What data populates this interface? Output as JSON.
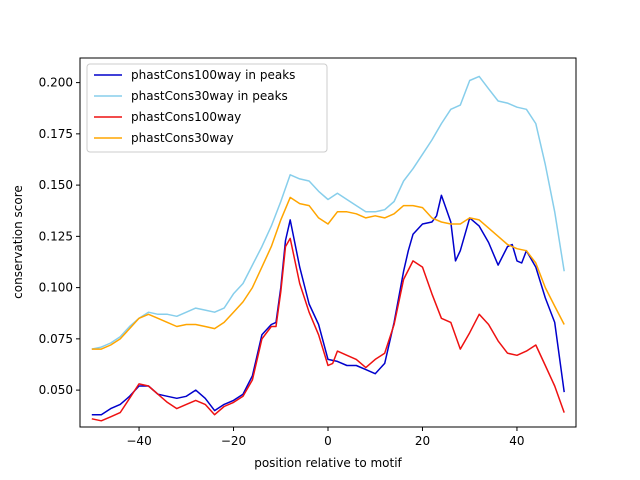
{
  "chart_data": {
    "type": "line",
    "xlabel": "position relative to motif",
    "ylabel": "conservation score",
    "xlim": [
      -52.5,
      52.5
    ],
    "ylim": [
      0.032,
      0.212
    ],
    "xticks": [
      -40,
      -20,
      0,
      20,
      40
    ],
    "yticks": [
      0.05,
      0.075,
      0.1,
      0.125,
      0.15,
      0.175,
      0.2
    ],
    "ytick_labels": [
      "0.050",
      "0.075",
      "0.100",
      "0.125",
      "0.150",
      "0.175",
      "0.200"
    ],
    "legend_position": "upper-left",
    "series": [
      {
        "name": "phastCons100way in peaks",
        "color": "#0000cc",
        "points": [
          [
            -50,
            0.038
          ],
          [
            -48,
            0.038
          ],
          [
            -46,
            0.041
          ],
          [
            -44,
            0.043
          ],
          [
            -42,
            0.047
          ],
          [
            -40,
            0.052
          ],
          [
            -38,
            0.052
          ],
          [
            -36,
            0.048
          ],
          [
            -34,
            0.047
          ],
          [
            -32,
            0.046
          ],
          [
            -30,
            0.047
          ],
          [
            -28,
            0.05
          ],
          [
            -26,
            0.046
          ],
          [
            -24,
            0.04
          ],
          [
            -22,
            0.043
          ],
          [
            -20,
            0.045
          ],
          [
            -18,
            0.048
          ],
          [
            -16,
            0.057
          ],
          [
            -14,
            0.077
          ],
          [
            -12,
            0.082
          ],
          [
            -11,
            0.083
          ],
          [
            -10,
            0.1
          ],
          [
            -9,
            0.123
          ],
          [
            -8,
            0.133
          ],
          [
            -6,
            0.11
          ],
          [
            -4,
            0.092
          ],
          [
            -2,
            0.082
          ],
          [
            0,
            0.065
          ],
          [
            2,
            0.064
          ],
          [
            4,
            0.062
          ],
          [
            6,
            0.062
          ],
          [
            8,
            0.06
          ],
          [
            10,
            0.058
          ],
          [
            12,
            0.063
          ],
          [
            14,
            0.083
          ],
          [
            16,
            0.108
          ],
          [
            17,
            0.118
          ],
          [
            18,
            0.126
          ],
          [
            20,
            0.131
          ],
          [
            22,
            0.132
          ],
          [
            23,
            0.135
          ],
          [
            24,
            0.145
          ],
          [
            26,
            0.132
          ],
          [
            27,
            0.113
          ],
          [
            28,
            0.118
          ],
          [
            30,
            0.134
          ],
          [
            32,
            0.13
          ],
          [
            34,
            0.122
          ],
          [
            36,
            0.111
          ],
          [
            38,
            0.12
          ],
          [
            39,
            0.121
          ],
          [
            40,
            0.113
          ],
          [
            41,
            0.112
          ],
          [
            42,
            0.118
          ],
          [
            44,
            0.11
          ],
          [
            46,
            0.095
          ],
          [
            48,
            0.083
          ],
          [
            50,
            0.049
          ]
        ]
      },
      {
        "name": "phastCons30way in peaks",
        "color": "#87ceeb",
        "points": [
          [
            -50,
            0.07
          ],
          [
            -48,
            0.071
          ],
          [
            -46,
            0.073
          ],
          [
            -44,
            0.076
          ],
          [
            -42,
            0.081
          ],
          [
            -40,
            0.085
          ],
          [
            -38,
            0.088
          ],
          [
            -36,
            0.087
          ],
          [
            -34,
            0.087
          ],
          [
            -32,
            0.086
          ],
          [
            -30,
            0.088
          ],
          [
            -28,
            0.09
          ],
          [
            -26,
            0.089
          ],
          [
            -24,
            0.088
          ],
          [
            -22,
            0.09
          ],
          [
            -20,
            0.097
          ],
          [
            -18,
            0.102
          ],
          [
            -16,
            0.111
          ],
          [
            -14,
            0.12
          ],
          [
            -12,
            0.13
          ],
          [
            -10,
            0.142
          ],
          [
            -8,
            0.155
          ],
          [
            -6,
            0.153
          ],
          [
            -4,
            0.152
          ],
          [
            -2,
            0.147
          ],
          [
            0,
            0.143
          ],
          [
            2,
            0.146
          ],
          [
            4,
            0.143
          ],
          [
            6,
            0.14
          ],
          [
            8,
            0.137
          ],
          [
            10,
            0.137
          ],
          [
            12,
            0.138
          ],
          [
            14,
            0.142
          ],
          [
            16,
            0.152
          ],
          [
            18,
            0.158
          ],
          [
            20,
            0.165
          ],
          [
            22,
            0.172
          ],
          [
            24,
            0.18
          ],
          [
            26,
            0.187
          ],
          [
            28,
            0.189
          ],
          [
            30,
            0.201
          ],
          [
            32,
            0.203
          ],
          [
            34,
            0.197
          ],
          [
            36,
            0.191
          ],
          [
            38,
            0.19
          ],
          [
            40,
            0.188
          ],
          [
            42,
            0.187
          ],
          [
            44,
            0.18
          ],
          [
            46,
            0.16
          ],
          [
            48,
            0.137
          ],
          [
            50,
            0.108
          ]
        ]
      },
      {
        "name": "phastCons100way",
        "color": "#ee1111",
        "points": [
          [
            -50,
            0.036
          ],
          [
            -48,
            0.035
          ],
          [
            -46,
            0.037
          ],
          [
            -44,
            0.039
          ],
          [
            -42,
            0.046
          ],
          [
            -40,
            0.053
          ],
          [
            -38,
            0.052
          ],
          [
            -36,
            0.048
          ],
          [
            -34,
            0.044
          ],
          [
            -32,
            0.041
          ],
          [
            -30,
            0.043
          ],
          [
            -28,
            0.045
          ],
          [
            -26,
            0.043
          ],
          [
            -24,
            0.038
          ],
          [
            -22,
            0.042
          ],
          [
            -20,
            0.044
          ],
          [
            -18,
            0.047
          ],
          [
            -16,
            0.055
          ],
          [
            -14,
            0.075
          ],
          [
            -12,
            0.081
          ],
          [
            -11,
            0.081
          ],
          [
            -10,
            0.098
          ],
          [
            -9,
            0.12
          ],
          [
            -8,
            0.124
          ],
          [
            -6,
            0.102
          ],
          [
            -4,
            0.088
          ],
          [
            -2,
            0.077
          ],
          [
            0,
            0.062
          ],
          [
            1,
            0.063
          ],
          [
            2,
            0.069
          ],
          [
            4,
            0.067
          ],
          [
            6,
            0.065
          ],
          [
            8,
            0.061
          ],
          [
            10,
            0.065
          ],
          [
            12,
            0.068
          ],
          [
            14,
            0.082
          ],
          [
            16,
            0.104
          ],
          [
            18,
            0.113
          ],
          [
            20,
            0.11
          ],
          [
            22,
            0.097
          ],
          [
            24,
            0.085
          ],
          [
            26,
            0.083
          ],
          [
            28,
            0.07
          ],
          [
            30,
            0.078
          ],
          [
            32,
            0.087
          ],
          [
            34,
            0.082
          ],
          [
            36,
            0.074
          ],
          [
            38,
            0.068
          ],
          [
            40,
            0.067
          ],
          [
            42,
            0.069
          ],
          [
            44,
            0.072
          ],
          [
            46,
            0.062
          ],
          [
            48,
            0.052
          ],
          [
            50,
            0.039
          ]
        ]
      },
      {
        "name": "phastCons30way",
        "color": "#ffa500",
        "points": [
          [
            -50,
            0.07
          ],
          [
            -48,
            0.07
          ],
          [
            -46,
            0.072
          ],
          [
            -44,
            0.075
          ],
          [
            -42,
            0.08
          ],
          [
            -40,
            0.085
          ],
          [
            -38,
            0.087
          ],
          [
            -36,
            0.085
          ],
          [
            -34,
            0.083
          ],
          [
            -32,
            0.081
          ],
          [
            -30,
            0.082
          ],
          [
            -28,
            0.082
          ],
          [
            -26,
            0.081
          ],
          [
            -24,
            0.08
          ],
          [
            -22,
            0.083
          ],
          [
            -20,
            0.088
          ],
          [
            -18,
            0.093
          ],
          [
            -16,
            0.1
          ],
          [
            -14,
            0.11
          ],
          [
            -12,
            0.12
          ],
          [
            -10,
            0.133
          ],
          [
            -8,
            0.144
          ],
          [
            -6,
            0.141
          ],
          [
            -4,
            0.14
          ],
          [
            -2,
            0.134
          ],
          [
            0,
            0.131
          ],
          [
            2,
            0.137
          ],
          [
            4,
            0.137
          ],
          [
            6,
            0.136
          ],
          [
            8,
            0.134
          ],
          [
            10,
            0.135
          ],
          [
            12,
            0.134
          ],
          [
            14,
            0.136
          ],
          [
            16,
            0.14
          ],
          [
            18,
            0.14
          ],
          [
            20,
            0.139
          ],
          [
            22,
            0.134
          ],
          [
            24,
            0.132
          ],
          [
            26,
            0.131
          ],
          [
            28,
            0.131
          ],
          [
            30,
            0.134
          ],
          [
            32,
            0.133
          ],
          [
            34,
            0.129
          ],
          [
            36,
            0.125
          ],
          [
            38,
            0.121
          ],
          [
            40,
            0.119
          ],
          [
            42,
            0.118
          ],
          [
            44,
            0.112
          ],
          [
            46,
            0.1
          ],
          [
            48,
            0.091
          ],
          [
            50,
            0.082
          ]
        ]
      }
    ]
  }
}
